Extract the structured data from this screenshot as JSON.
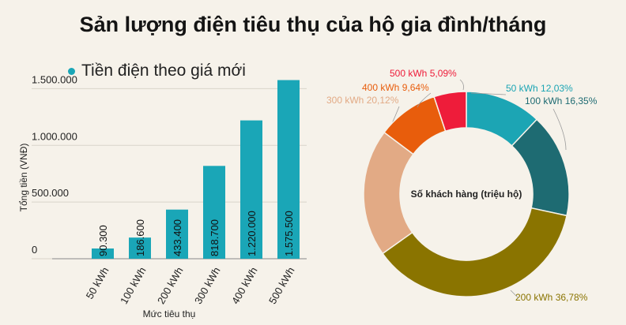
{
  "title": "Sản lượng điện tiêu thụ của hộ gia đình/tháng",
  "chart_data": [
    {
      "type": "bar",
      "legend": "Tiền điện theo giá mới",
      "categories": [
        "50 kWh",
        "100 kWh",
        "200 kWh",
        "300 kWh",
        "400 kWh",
        "500 kWh"
      ],
      "values": [
        90300,
        186600,
        433400,
        818700,
        1220000,
        1575500
      ],
      "value_labels": [
        "90.300",
        "186.600",
        "433.400",
        "818.700",
        "1.220.000",
        "1.575.500"
      ],
      "yticks": [
        0,
        500000,
        1000000,
        1500000
      ],
      "ytick_labels": [
        "0",
        "500.000",
        "1.000.000",
        "1.500.000"
      ],
      "ylim": [
        0,
        1600000
      ],
      "xlabel": "Mức tiêu thụ",
      "ylabel": "Tổng tiền (VNĐ)",
      "color": "#1aa6b7",
      "grid": true
    },
    {
      "type": "pie",
      "center_label": "Số khách hàng (triệu hộ)",
      "slices": [
        {
          "label": "50 kWh 12,03%",
          "value": 12.03,
          "color": "#1ca5b4",
          "text_color": "#1ca5b4"
        },
        {
          "label": "100 kWh 16,35%",
          "value": 16.35,
          "color": "#1e6b72",
          "text_color": "#1e6b72"
        },
        {
          "label": "200 kWh 36,78%",
          "value": 36.78,
          "color": "#8a7400",
          "text_color": "#8a7400"
        },
        {
          "label": "300 kWh 20,12%",
          "value": 20.12,
          "color": "#e2aa85",
          "text_color": "#e2aa85"
        },
        {
          "label": "400 kWh 9,64%",
          "value": 9.64,
          "color": "#e85d0c",
          "text_color": "#e85d0c"
        },
        {
          "label": "500 kWh 5,09%",
          "value": 5.09,
          "color": "#ee1c3a",
          "text_color": "#ee1c3a"
        }
      ]
    }
  ]
}
